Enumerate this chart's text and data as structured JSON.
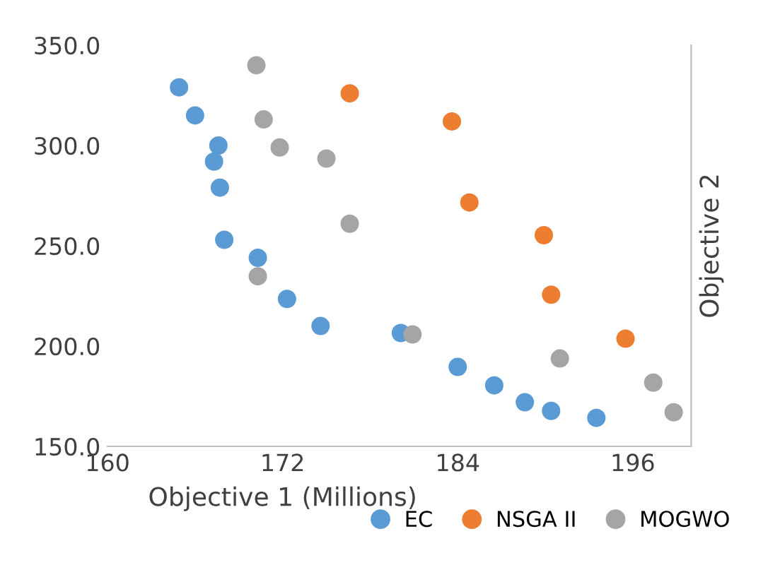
{
  "chart_data": {
    "type": "scatter",
    "xlabel": "Objective 1 (Millions)",
    "ylabel": "Objective 2",
    "xlim": [
      160,
      200
    ],
    "xticks": [
      160,
      172,
      184,
      196
    ],
    "ylim": [
      150,
      350
    ],
    "yticks": [
      {
        "value": 150,
        "label": "150.0"
      },
      {
        "value": 200,
        "label": "200.0"
      },
      {
        "value": 250,
        "label": "250.0"
      },
      {
        "value": 300,
        "label": "300.0"
      },
      {
        "value": 350,
        "label": "350.0"
      }
    ],
    "grid": false,
    "legend": "bottom right",
    "marker": "circle",
    "series": [
      {
        "name": "EC",
        "color": "#5b9bd5",
        "x": [
          164.9,
          166.0,
          167.6,
          167.3,
          167.7,
          168.0,
          170.3,
          172.3,
          174.6,
          180.1,
          184.0,
          186.5,
          188.6,
          190.4,
          193.5
        ],
        "values": [
          329,
          315,
          300,
          292,
          279,
          253,
          244,
          223.5,
          210,
          206.5,
          189.6,
          180.4,
          172,
          167.7,
          164.2
        ]
      },
      {
        "name": "NSGA II",
        "color": "#ed7d31",
        "x": [
          176.6,
          183.6,
          184.8,
          189.9,
          190.4,
          195.5
        ],
        "values": [
          326,
          312,
          271.6,
          255.3,
          225.6,
          203.7
        ]
      },
      {
        "name": "MOGWO",
        "color": "#a5a5a5",
        "x": [
          170.2,
          170.7,
          171.8,
          175.0,
          176.6,
          170.3,
          180.9,
          191.0,
          197.4,
          198.8
        ],
        "values": [
          340,
          313,
          299,
          293.5,
          261,
          234.8,
          205.8,
          193.8,
          181.8,
          167
        ]
      }
    ]
  }
}
